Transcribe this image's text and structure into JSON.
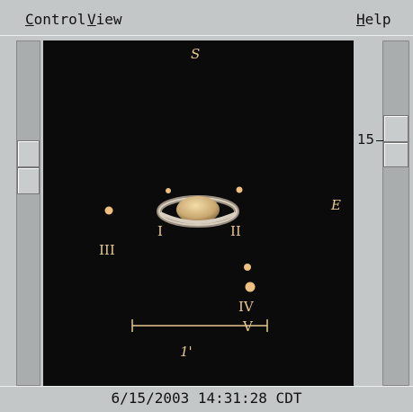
{
  "menu": {
    "left": [
      "Control",
      "View"
    ],
    "right": "Help"
  },
  "view": {
    "north_label": "S",
    "east_label": "E",
    "moons": [
      "I",
      "II",
      "III",
      "IV",
      "V"
    ],
    "scale_label": "1'"
  },
  "zoom": {
    "value": "15"
  },
  "status": "6/15/2003 14:31:28 CDT"
}
